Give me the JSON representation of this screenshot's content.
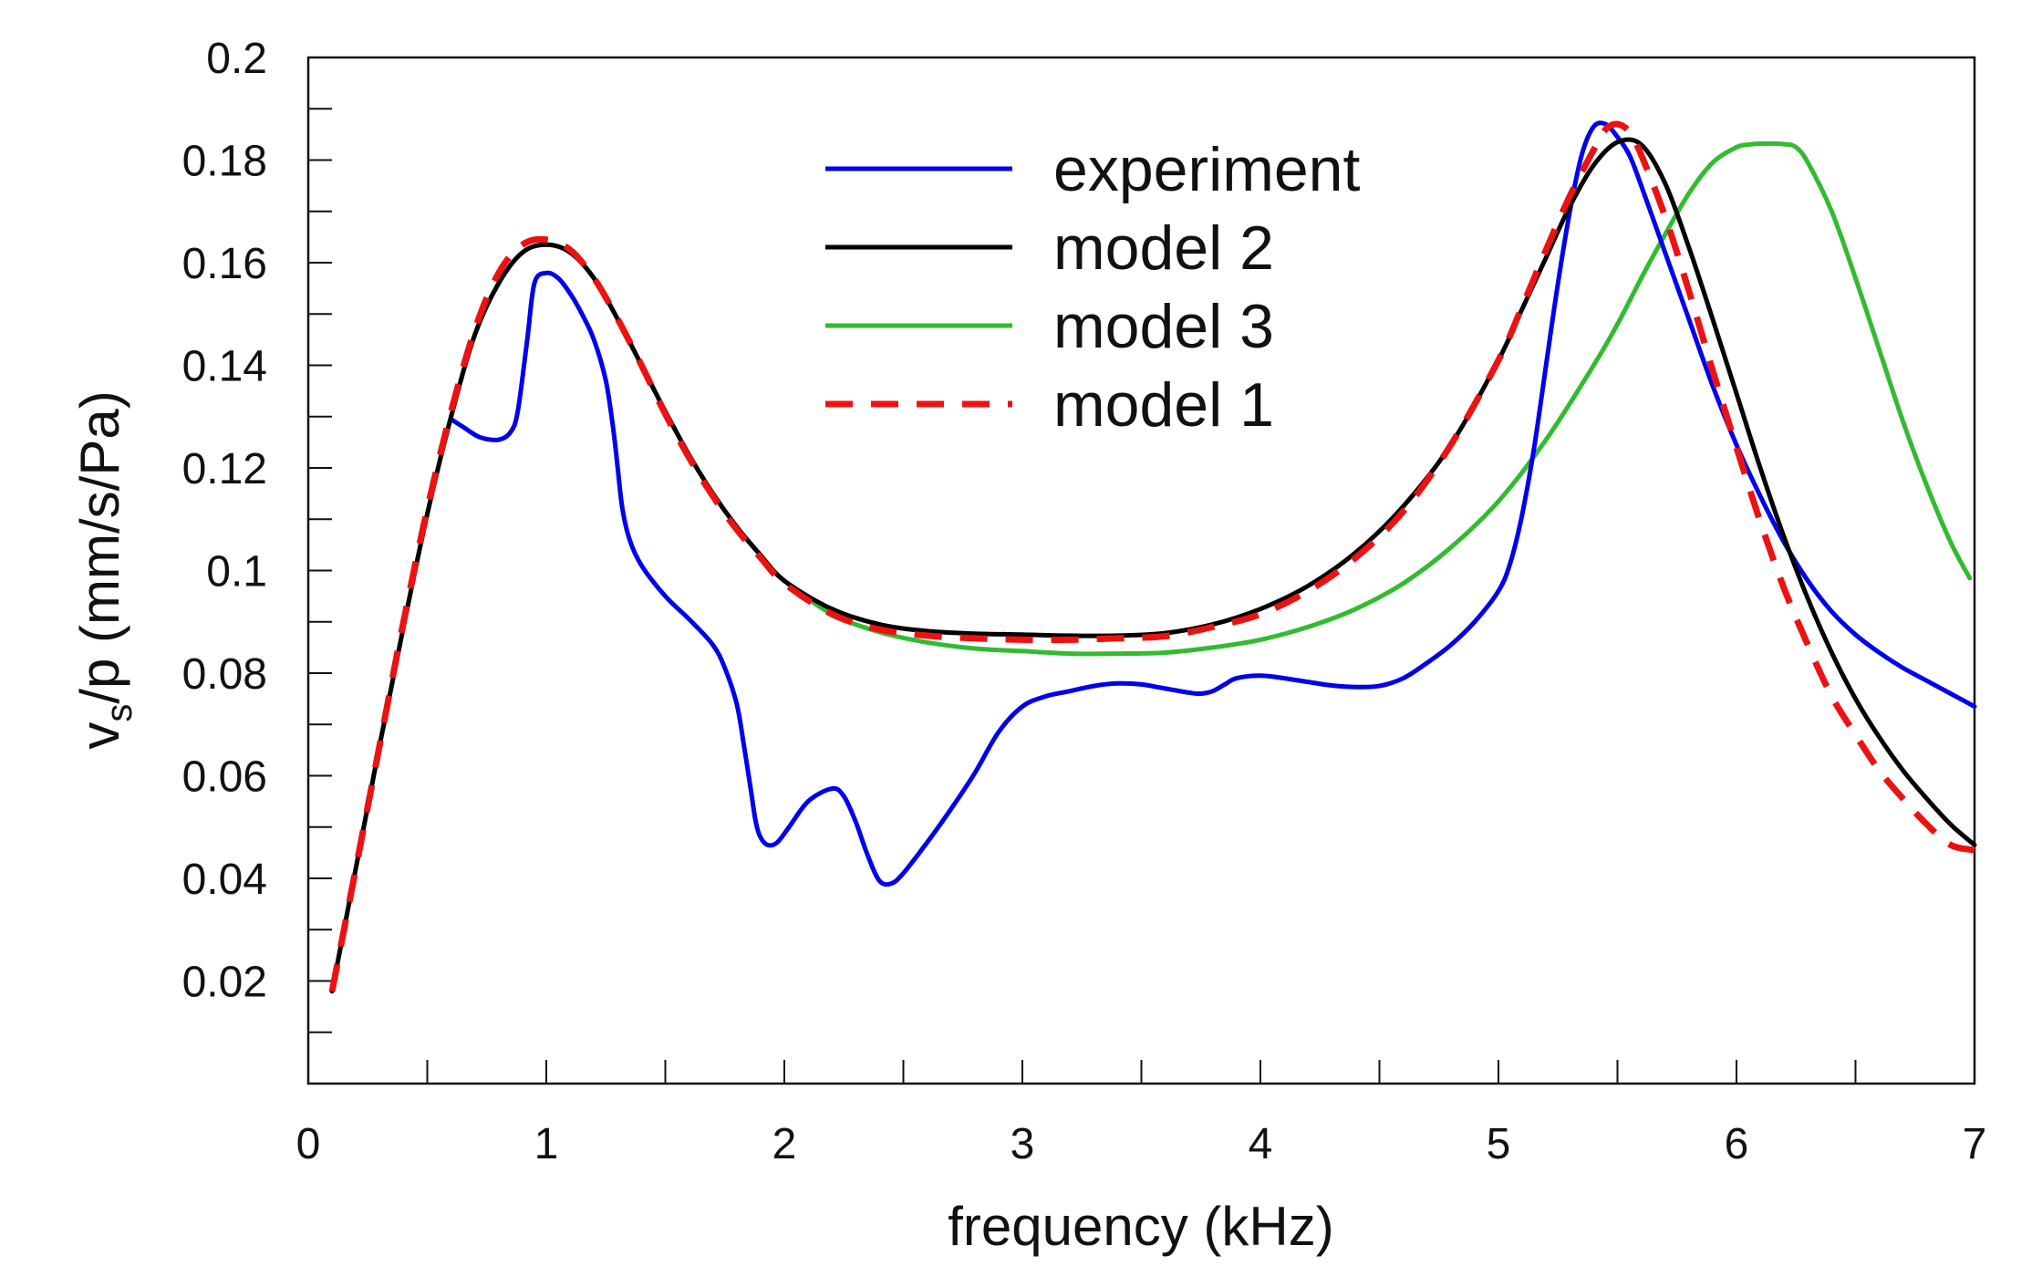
{
  "chart_data": {
    "type": "line",
    "title": "",
    "xlabel": "frequency (kHz)",
    "ylabel": {
      "base": "v",
      "subscript": "s",
      "rest": "/p (mm/s/Pa)"
    },
    "xlim": [
      0,
      7
    ],
    "ylim": [
      0.0,
      0.2
    ],
    "x_ticks": [
      0,
      1,
      2,
      3,
      4,
      5,
      6,
      7
    ],
    "x_tick_labels": [
      "0",
      "1",
      "2",
      "3",
      "4",
      "5",
      "6",
      "7"
    ],
    "y_ticks": [
      0.02,
      0.04,
      0.06,
      0.08,
      0.1,
      0.12,
      0.14,
      0.16,
      0.18,
      0.2
    ],
    "y_tick_labels": [
      "0.02",
      "0.04",
      "0.06",
      "0.08",
      "0.1",
      "0.12",
      "0.14",
      "0.16",
      "0.18",
      "0.2"
    ],
    "grid": false,
    "legend_position": "top-center",
    "series": [
      {
        "name": "experiment",
        "color": "#0000ee",
        "dash": "solid",
        "x": [
          0.6,
          0.65,
          0.72,
          0.8,
          0.85,
          0.88,
          0.92,
          0.95,
          1.0,
          1.05,
          1.1,
          1.15,
          1.2,
          1.25,
          1.28,
          1.3,
          1.32,
          1.35,
          1.4,
          1.5,
          1.6,
          1.7,
          1.75,
          1.8,
          1.83,
          1.86,
          1.88,
          1.9,
          1.93,
          1.97,
          2.02,
          2.1,
          2.2,
          2.25,
          2.3,
          2.35,
          2.4,
          2.45,
          2.5,
          2.6,
          2.7,
          2.8,
          2.9,
          3.0,
          3.1,
          3.2,
          3.3,
          3.4,
          3.5,
          3.6,
          3.7,
          3.75,
          3.8,
          3.85,
          3.9,
          4.0,
          4.1,
          4.2,
          4.3,
          4.4,
          4.5,
          4.6,
          4.7,
          4.8,
          4.9,
          5.0,
          5.05,
          5.1,
          5.15,
          5.2,
          5.25,
          5.3,
          5.35,
          5.4,
          5.45,
          5.5,
          5.55,
          5.6,
          5.7,
          5.8,
          5.9,
          6.0,
          6.1,
          6.2,
          6.3,
          6.4,
          6.5,
          6.6,
          6.7,
          6.8,
          6.9,
          7.0
        ],
        "values": [
          0.1295,
          0.128,
          0.126,
          0.1255,
          0.127,
          0.131,
          0.145,
          0.156,
          0.158,
          0.157,
          0.154,
          0.15,
          0.145,
          0.137,
          0.128,
          0.12,
          0.112,
          0.106,
          0.101,
          0.095,
          0.0905,
          0.0855,
          0.081,
          0.074,
          0.066,
          0.057,
          0.051,
          0.048,
          0.0465,
          0.047,
          0.05,
          0.055,
          0.0575,
          0.056,
          0.051,
          0.0445,
          0.0395,
          0.039,
          0.041,
          0.047,
          0.0535,
          0.0605,
          0.0685,
          0.0735,
          0.0755,
          0.0765,
          0.0775,
          0.078,
          0.0778,
          0.077,
          0.0762,
          0.076,
          0.0765,
          0.0778,
          0.079,
          0.0795,
          0.079,
          0.0783,
          0.0776,
          0.0773,
          0.0775,
          0.079,
          0.082,
          0.0855,
          0.09,
          0.096,
          0.1015,
          0.111,
          0.124,
          0.14,
          0.156,
          0.17,
          0.181,
          0.1865,
          0.187,
          0.1845,
          0.181,
          0.175,
          0.162,
          0.149,
          0.136,
          0.1245,
          0.1145,
          0.1055,
          0.098,
          0.092,
          0.0875,
          0.084,
          0.081,
          0.0785,
          0.076,
          0.0735
        ]
      },
      {
        "name": "model 2",
        "color": "#000000",
        "dash": "solid",
        "x": [
          0.1,
          0.2,
          0.3,
          0.4,
          0.5,
          0.6,
          0.7,
          0.8,
          0.9,
          1.0,
          1.1,
          1.2,
          1.3,
          1.4,
          1.5,
          1.6,
          1.7,
          1.8,
          1.9,
          2.0,
          2.2,
          2.4,
          2.6,
          2.8,
          3.0,
          3.2,
          3.4,
          3.6,
          3.8,
          4.0,
          4.2,
          4.4,
          4.6,
          4.8,
          5.0,
          5.1,
          5.2,
          5.3,
          5.4,
          5.5,
          5.6,
          5.7,
          5.8,
          5.9,
          6.0,
          6.1,
          6.2,
          6.3,
          6.4,
          6.5,
          6.6,
          6.7,
          6.8,
          6.9,
          7.0
        ],
        "values": [
          0.018,
          0.042,
          0.066,
          0.089,
          0.111,
          0.13,
          0.146,
          0.156,
          0.162,
          0.1635,
          0.162,
          0.157,
          0.149,
          0.14,
          0.131,
          0.1225,
          0.115,
          0.1085,
          0.103,
          0.098,
          0.0925,
          0.0895,
          0.0882,
          0.0877,
          0.0875,
          0.0873,
          0.0873,
          0.0878,
          0.0895,
          0.0925,
          0.097,
          0.1035,
          0.1125,
          0.1245,
          0.141,
          0.151,
          0.161,
          0.171,
          0.179,
          0.1835,
          0.183,
          0.1755,
          0.163,
          0.149,
          0.1345,
          0.12,
          0.1065,
          0.0945,
          0.084,
          0.075,
          0.0675,
          0.061,
          0.0555,
          0.0505,
          0.0465
        ]
      },
      {
        "name": "model 3",
        "color": "#33bb2f",
        "dash": "solid",
        "x": [
          0.1,
          0.2,
          0.3,
          0.4,
          0.5,
          0.6,
          0.7,
          0.8,
          0.9,
          1.0,
          1.1,
          1.2,
          1.3,
          1.4,
          1.5,
          1.6,
          1.7,
          1.8,
          1.9,
          2.0,
          2.2,
          2.4,
          2.6,
          2.8,
          3.0,
          3.2,
          3.4,
          3.6,
          3.8,
          4.0,
          4.2,
          4.4,
          4.6,
          4.8,
          5.0,
          5.2,
          5.4,
          5.5,
          5.6,
          5.7,
          5.8,
          5.9,
          6.0,
          6.05,
          6.1,
          6.2,
          6.25,
          6.3,
          6.4,
          6.5,
          6.6,
          6.7,
          6.8,
          6.9,
          6.98
        ],
        "values": [
          0.018,
          0.042,
          0.066,
          0.089,
          0.111,
          0.13,
          0.146,
          0.156,
          0.162,
          0.1635,
          0.162,
          0.157,
          0.149,
          0.14,
          0.131,
          0.1225,
          0.115,
          0.1085,
          0.103,
          0.098,
          0.0915,
          0.088,
          0.086,
          0.0848,
          0.0843,
          0.0838,
          0.0838,
          0.084,
          0.085,
          0.0865,
          0.089,
          0.0925,
          0.0975,
          0.1045,
          0.1135,
          0.1255,
          0.14,
          0.148,
          0.157,
          0.1655,
          0.1735,
          0.1795,
          0.1825,
          0.183,
          0.1832,
          0.1831,
          0.1825,
          0.1795,
          0.17,
          0.157,
          0.143,
          0.129,
          0.1165,
          0.1055,
          0.0985
        ]
      },
      {
        "name": "model 1",
        "color": "#ee1111",
        "dash": "dashed",
        "x": [
          0.1,
          0.2,
          0.3,
          0.4,
          0.5,
          0.6,
          0.7,
          0.8,
          0.9,
          1.0,
          1.1,
          1.2,
          1.3,
          1.4,
          1.5,
          1.6,
          1.7,
          1.8,
          1.9,
          2.0,
          2.2,
          2.4,
          2.6,
          2.8,
          3.0,
          3.2,
          3.4,
          3.6,
          3.8,
          4.0,
          4.2,
          4.4,
          4.6,
          4.8,
          5.0,
          5.1,
          5.2,
          5.3,
          5.4,
          5.45,
          5.5,
          5.55,
          5.6,
          5.7,
          5.8,
          5.9,
          6.0,
          6.1,
          6.2,
          6.3,
          6.4,
          6.5,
          6.6,
          6.7,
          6.8,
          6.9,
          7.0
        ],
        "values": [
          0.018,
          0.042,
          0.066,
          0.09,
          0.112,
          0.131,
          0.147,
          0.158,
          0.1635,
          0.1645,
          0.1625,
          0.157,
          0.149,
          0.14,
          0.1305,
          0.122,
          0.1145,
          0.108,
          0.1025,
          0.0975,
          0.0915,
          0.0885,
          0.0873,
          0.0868,
          0.0865,
          0.0865,
          0.0868,
          0.0872,
          0.089,
          0.0915,
          0.096,
          0.1025,
          0.1115,
          0.1245,
          0.141,
          0.1515,
          0.1625,
          0.173,
          0.182,
          0.186,
          0.187,
          0.1855,
          0.181,
          0.169,
          0.1545,
          0.139,
          0.124,
          0.1095,
          0.0965,
          0.0855,
          0.0755,
          0.068,
          0.061,
          0.0555,
          0.0505,
          0.0465,
          0.0455
        ]
      }
    ],
    "legend_order": [
      "experiment",
      "model 2",
      "model 3",
      "model 1"
    ]
  }
}
